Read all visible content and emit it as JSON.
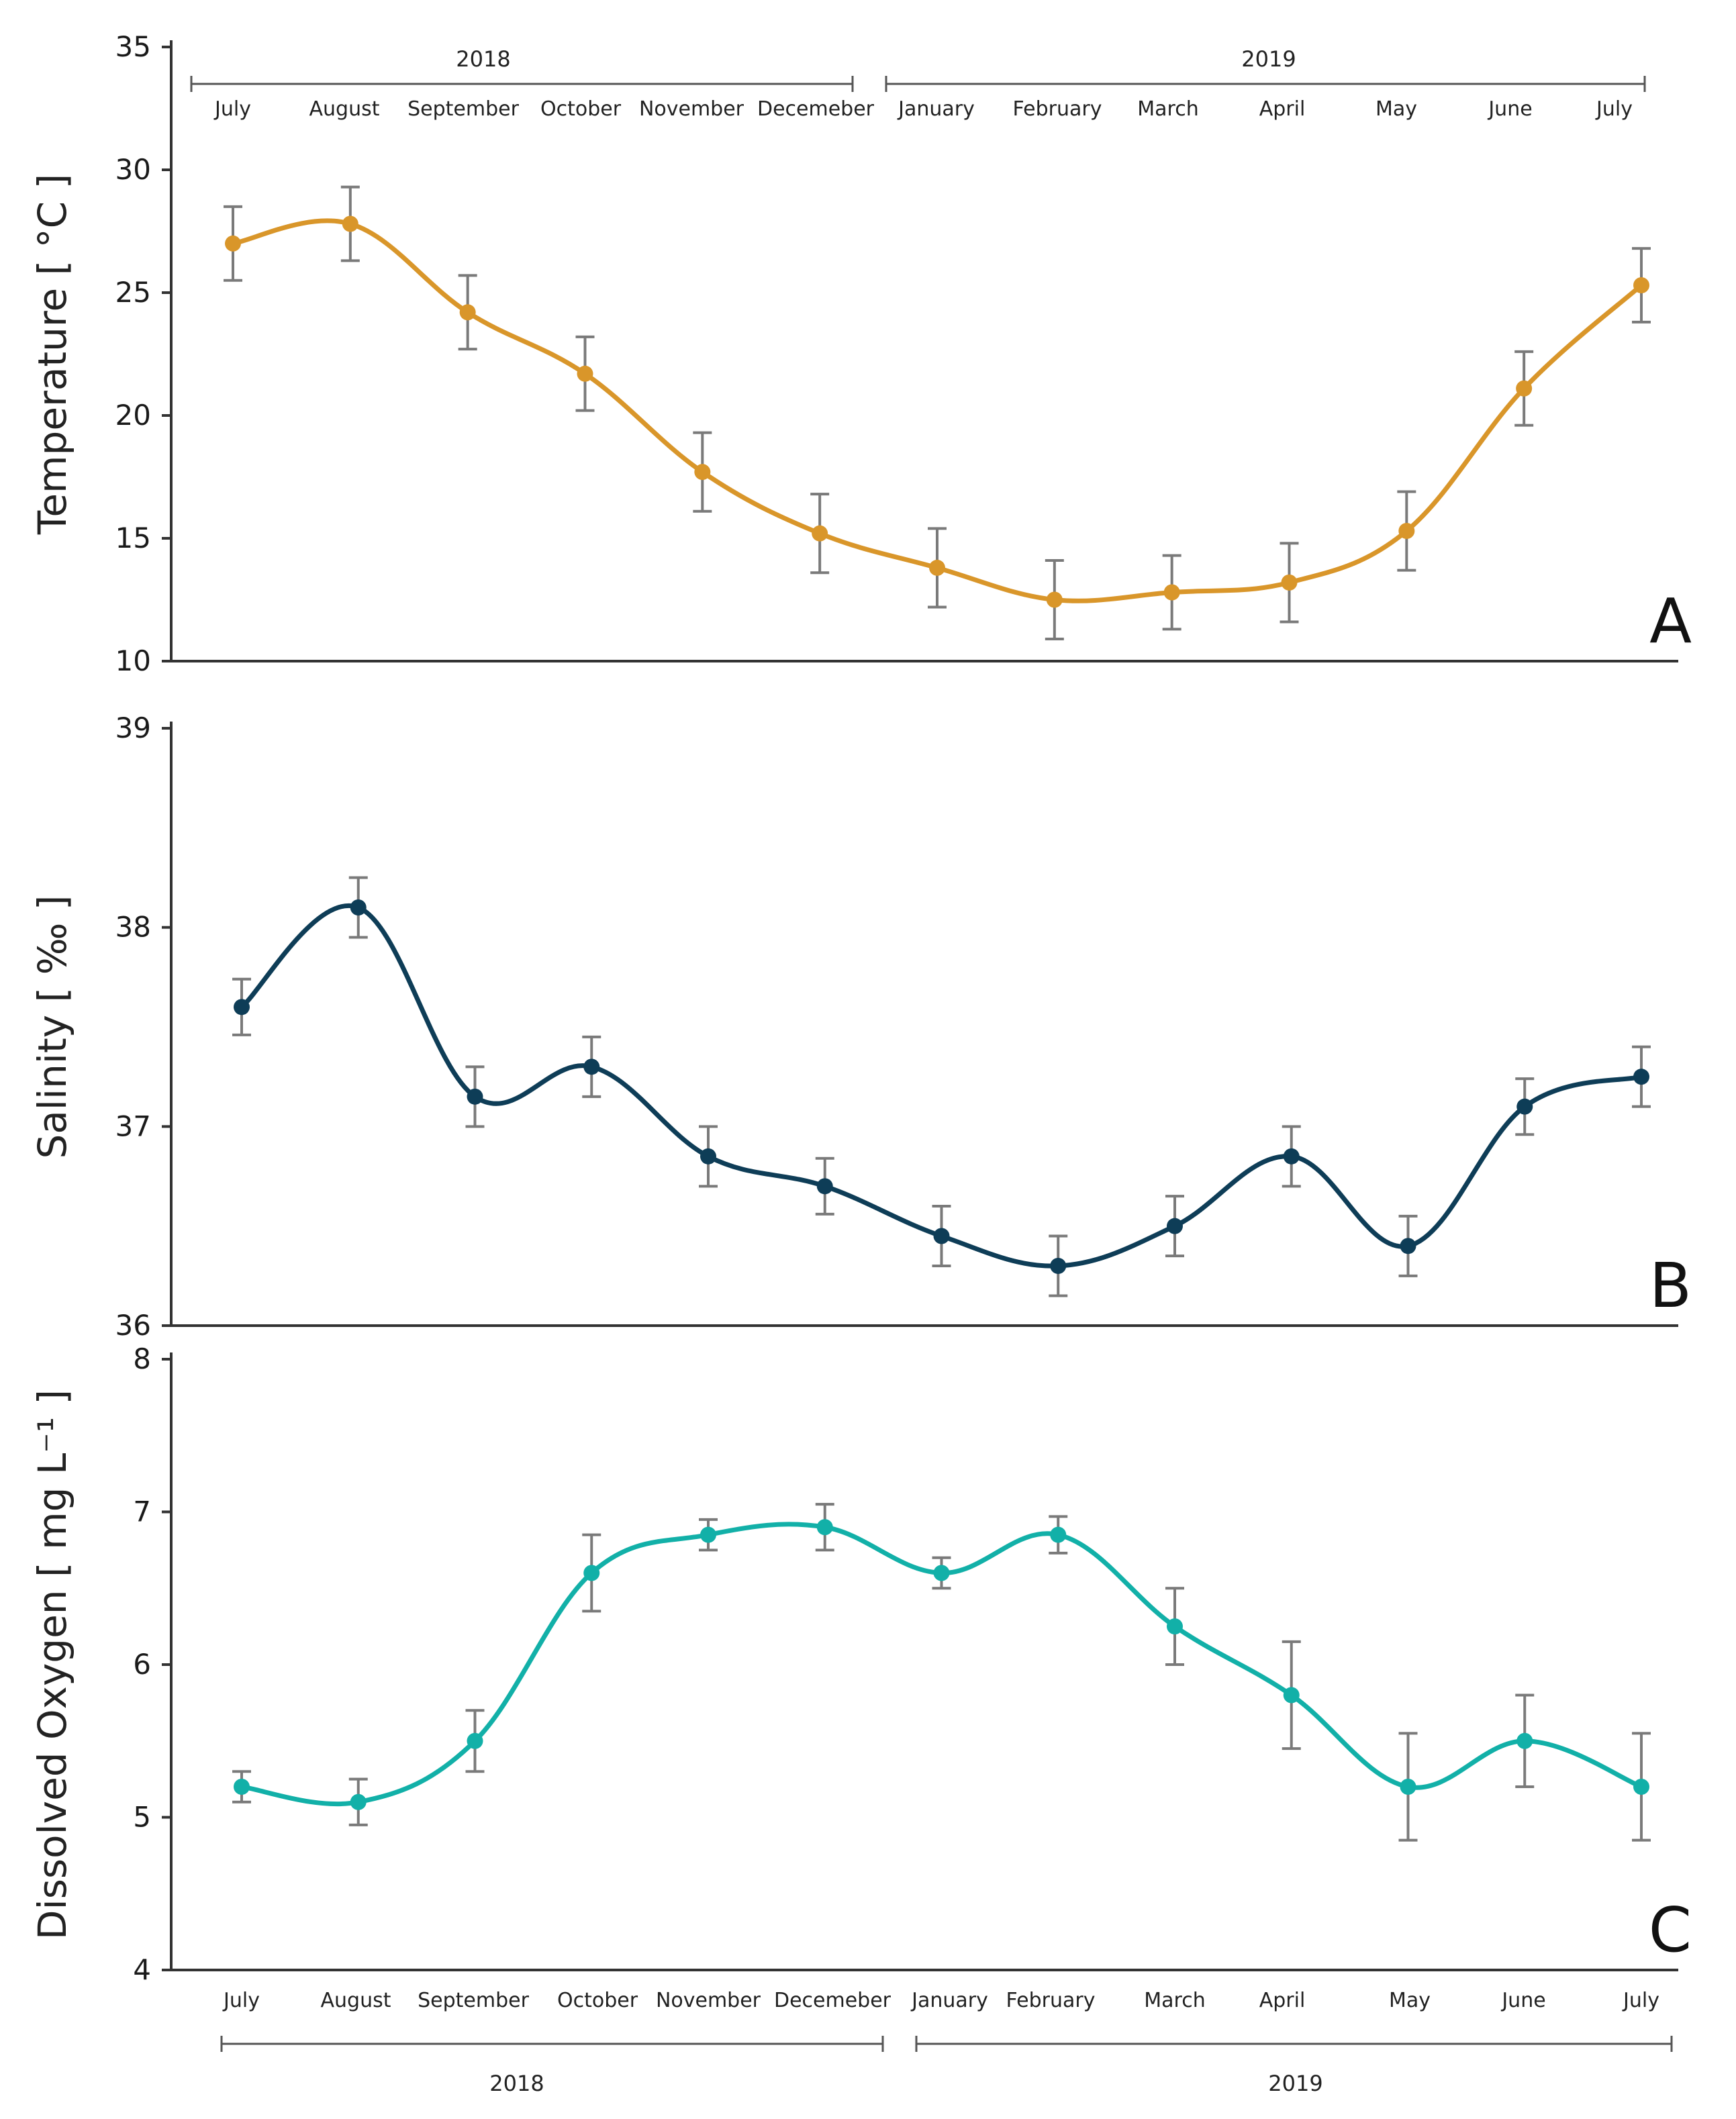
{
  "chart_data": [
    {
      "type": "line",
      "panel": "A",
      "ylabel": "Temperature [ °C ]",
      "ylim": [
        10,
        35
      ],
      "yticks": [
        10,
        15,
        20,
        25,
        30,
        35
      ],
      "color": "#D9962A",
      "x_month_labels": [
        "July",
        "August",
        "September",
        "October",
        "November",
        "Decemeber",
        "January",
        "February",
        "March",
        "April",
        "May",
        "June",
        "July"
      ],
      "year_labels": [
        "2018",
        "2019"
      ],
      "values": [
        27.0,
        27.8,
        24.2,
        21.7,
        17.7,
        15.2,
        13.8,
        12.5,
        12.8,
        13.2,
        15.3,
        21.1,
        25.3
      ],
      "errors": [
        1.5,
        1.5,
        1.5,
        1.5,
        1.6,
        1.6,
        1.6,
        1.6,
        1.5,
        1.6,
        1.6,
        1.5,
        1.5
      ]
    },
    {
      "type": "line",
      "panel": "B",
      "ylabel": "Salinity [ ‰ ]",
      "ylim": [
        36,
        39
      ],
      "yticks": [
        36,
        37,
        38,
        39
      ],
      "color": "#0E3D57",
      "values": [
        37.6,
        38.1,
        37.15,
        37.3,
        36.85,
        36.7,
        36.45,
        36.3,
        36.5,
        36.85,
        36.4,
        37.1,
        37.25
      ],
      "errors": [
        0.14,
        0.15,
        0.15,
        0.15,
        0.15,
        0.14,
        0.15,
        0.15,
        0.15,
        0.15,
        0.15,
        0.14,
        0.15
      ]
    },
    {
      "type": "line",
      "panel": "C",
      "ylabel": "Dissolved Oxygen [ mg L⁻¹ ]",
      "ylim": [
        4,
        8
      ],
      "yticks": [
        4,
        5,
        6,
        7,
        8
      ],
      "color": "#12B0A8",
      "x_month_labels": [
        "July",
        "August",
        "September",
        "October",
        "November",
        "Decemeber",
        "January",
        "February",
        "March",
        "April",
        "May",
        "June",
        "July"
      ],
      "year_labels": [
        "2018",
        "2019"
      ],
      "values": [
        5.2,
        5.1,
        5.5,
        6.6,
        6.85,
        6.9,
        6.6,
        6.85,
        6.25,
        5.8,
        5.2,
        5.5,
        5.2
      ],
      "errors": [
        0.1,
        0.15,
        0.2,
        0.25,
        0.1,
        0.15,
        0.1,
        0.12,
        0.25,
        0.35,
        0.35,
        0.3,
        0.35
      ]
    }
  ]
}
